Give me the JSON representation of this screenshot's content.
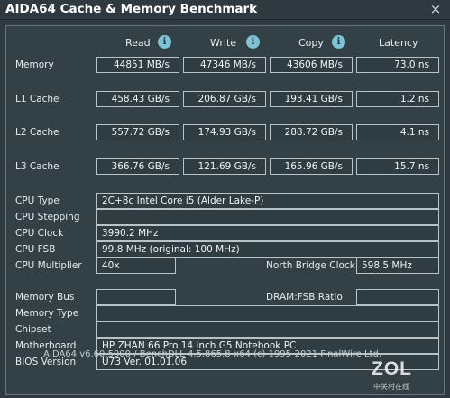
{
  "window": {
    "title": "AIDA64 Cache & Memory Benchmark",
    "close_glyph": "×"
  },
  "columns": [
    "Read",
    "Write",
    "Copy",
    "Latency"
  ],
  "info_glyph": "i",
  "bench_rows": [
    {
      "label": "Memory",
      "read": "44851 MB/s",
      "write": "47346 MB/s",
      "copy": "43606 MB/s",
      "latency": "73.0 ns"
    },
    {
      "label": "L1 Cache",
      "read": "458.43 GB/s",
      "write": "206.87 GB/s",
      "copy": "193.41 GB/s",
      "latency": "1.2 ns"
    },
    {
      "label": "L2 Cache",
      "read": "557.72 GB/s",
      "write": "174.93 GB/s",
      "copy": "288.72 GB/s",
      "latency": "4.1 ns"
    },
    {
      "label": "L3 Cache",
      "read": "366.76 GB/s",
      "write": "121.69 GB/s",
      "copy": "165.96 GB/s",
      "latency": "15.7 ns"
    }
  ],
  "cpu": {
    "type_label": "CPU Type",
    "type_value": "2C+8c Intel Core i5  (Alder Lake-P)",
    "stepping_label": "CPU Stepping",
    "stepping_value": "",
    "clock_label": "CPU Clock",
    "clock_value": "3990.2 MHz",
    "fsb_label": "CPU FSB",
    "fsb_value": "99.8 MHz  (original: 100 MHz)",
    "multiplier_label": "CPU Multiplier",
    "multiplier_value": "40x",
    "northbridge_label": "North Bridge Clock",
    "northbridge_value": "598.5 MHz"
  },
  "system": {
    "membus_label": "Memory Bus",
    "membus_value": "",
    "dramfsb_label": "DRAM:FSB Ratio",
    "dramfsb_value": "",
    "memtype_label": "Memory Type",
    "memtype_value": "",
    "chipset_label": "Chipset",
    "chipset_value": "",
    "motherboard_label": "Motherboard",
    "motherboard_value": "HP ZHAN 66 Pro 14 inch G5 Notebook PC",
    "bios_label": "BIOS Version",
    "bios_value": "U73 Ver. 01.01.06"
  },
  "footer": "AIDA64 v6.60.5900 / BenchDLL 4.5.865.8-x64  (c) 1995-2021 FinalWire Ltd.",
  "watermark": {
    "big": "ZOL",
    "small": "中关村在线"
  }
}
